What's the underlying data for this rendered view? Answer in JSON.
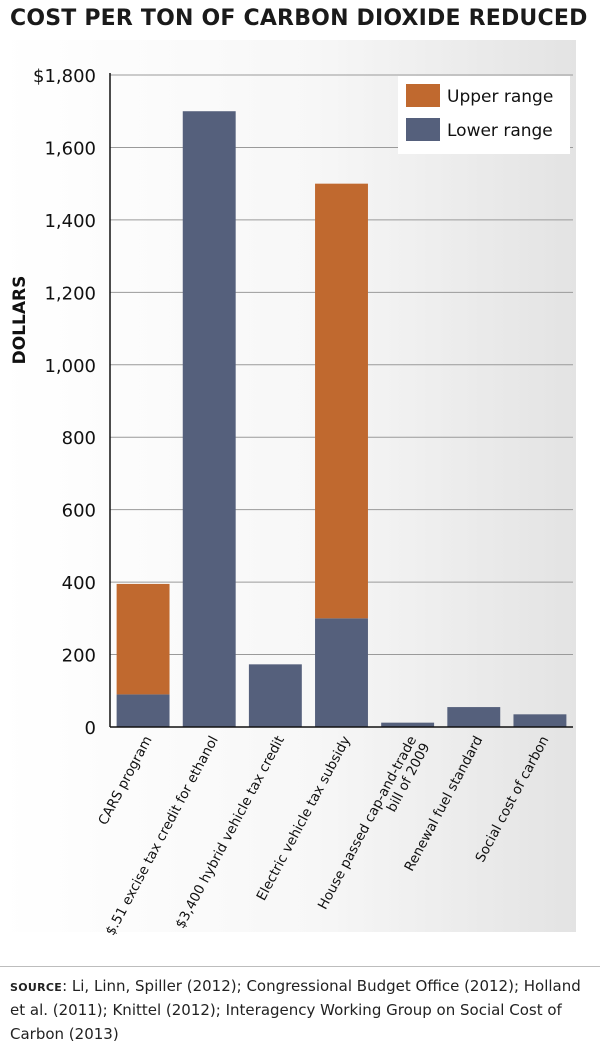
{
  "chart_data": {
    "type": "bar",
    "stacked": true,
    "title": "COST PER TON OF CARBON DIOXIDE REDUCED",
    "ylabel": "DOLLARS",
    "xlabel": "",
    "ylim": [
      0,
      1800
    ],
    "yticks": [
      "$1,800",
      "1,600",
      "1,400",
      "1,200",
      "1,000",
      "800",
      "600",
      "400",
      "200",
      "0"
    ],
    "ytick_values": [
      1800,
      1600,
      1400,
      1200,
      1000,
      800,
      600,
      400,
      200,
      0
    ],
    "categories": [
      "CARS program",
      "$.51 excise tax credit for ethanol",
      "$3,400 hybrid vehicle tax credit",
      "Electric vehicle tax subsidy",
      "House passed cap-and-trade bill of 2009",
      "Renewal fuel standard",
      "Social cost of carbon"
    ],
    "category_lines": [
      [
        "CARS program"
      ],
      [
        "$.51 excise tax credit for ethanol"
      ],
      [
        "$3,400 hybrid vehicle tax credit"
      ],
      [
        "Electric vehicle tax subsidy"
      ],
      [
        "House passed cap-and-trade",
        "bill of 2009"
      ],
      [
        "Renewal fuel standard"
      ],
      [
        "Social cost of carbon"
      ]
    ],
    "series": [
      {
        "name": "Lower range",
        "color": "#55607c",
        "values": [
          90,
          1700,
          173,
          300,
          12,
          55,
          35
        ]
      },
      {
        "name": "Upper range",
        "color": "#c0692f",
        "values": [
          305,
          0,
          0,
          1200,
          0,
          0,
          0
        ]
      }
    ],
    "legend_order": [
      "Upper range",
      "Lower range"
    ],
    "legend_position": "top-right",
    "grid": true
  },
  "source": {
    "label": "Source",
    "text": ": Li, Linn, Spiller (2012); Congressional Budget Office (2012); Holland et al. (2011); Knittel (2012); Interagency Working Group on Social Cost of Carbon (2013)"
  }
}
